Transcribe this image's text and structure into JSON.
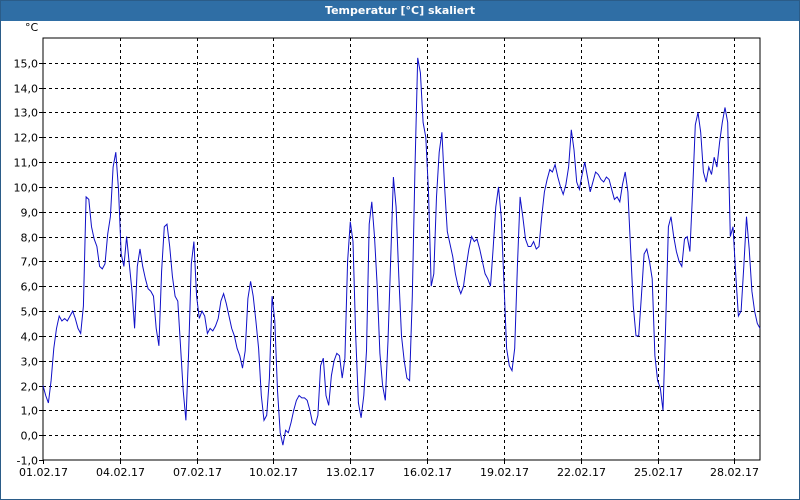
{
  "window": {
    "title": "Temperatur [°C] skaliert"
  },
  "chart_data": {
    "type": "line",
    "title": "Temperatur [°C] skaliert",
    "ylabel": "°C",
    "xlabel": "",
    "ylim": [
      -1.0,
      16.0
    ],
    "xlim": [
      "01.02.17",
      "28.02.17 ~24:00"
    ],
    "grid": true,
    "colors": {
      "line": "#1010c8",
      "grid": "#000000",
      "axis": "#000000"
    },
    "y_ticks": [
      "-1,0",
      "0,0",
      "1,0",
      "2,0",
      "3,0",
      "4,0",
      "5,0",
      "6,0",
      "7,0",
      "8,0",
      "9,0",
      "10,0",
      "11,0",
      "12,0",
      "13,0",
      "14,0",
      "15,0"
    ],
    "x_ticks": [
      "01.02.17",
      "04.02.17",
      "07.02.17",
      "10.02.17",
      "13.02.17",
      "16.02.17",
      "19.02.17",
      "22.02.17",
      "25.02.17",
      "28.02.17"
    ],
    "series": [
      {
        "values": [
          2.0,
          1.6,
          1.3,
          2.2,
          3.5,
          4.3,
          4.8,
          4.6,
          4.7,
          4.6,
          4.8,
          5.0,
          4.7,
          4.3,
          4.1,
          5.2,
          9.6,
          9.5,
          8.4,
          7.9,
          7.6,
          6.8,
          6.7,
          6.9,
          8.1,
          8.8,
          10.8,
          11.4,
          9.9,
          7.3,
          6.8,
          8.0,
          6.9,
          5.8,
          4.3,
          6.8,
          7.5,
          6.8,
          6.3,
          5.9,
          5.8,
          5.6,
          4.3,
          3.6,
          6.6,
          8.4,
          8.5,
          7.6,
          6.4,
          5.6,
          5.4,
          3.6,
          1.8,
          0.6,
          3.3,
          6.9,
          7.8,
          5.6,
          4.7,
          5.0,
          4.8,
          4.1,
          4.3,
          4.2,
          4.4,
          4.7,
          5.4,
          5.7,
          5.3,
          4.8,
          4.3,
          4.0,
          3.5,
          3.2,
          2.7,
          3.4,
          5.5,
          6.2,
          5.6,
          4.6,
          3.5,
          1.6,
          0.6,
          0.8,
          2.3,
          5.6,
          4.6,
          1.8,
          0.1,
          -0.4,
          0.2,
          0.1,
          0.5,
          1.0,
          1.4,
          1.6,
          1.5,
          1.5,
          1.4,
          1.0,
          0.5,
          0.4,
          0.8,
          2.8,
          3.1,
          1.6,
          1.2,
          2.4,
          3.0,
          3.3,
          3.2,
          2.3,
          3.1,
          7.0,
          8.6,
          7.8,
          4.0,
          1.3,
          0.7,
          1.6,
          3.4,
          8.5,
          9.4,
          8.0,
          6.0,
          3.3,
          2.0,
          1.4,
          3.8,
          7.1,
          10.4,
          9.2,
          6.4,
          4.0,
          3.0,
          2.3,
          2.2,
          5.6,
          10.8,
          15.2,
          14.6,
          12.6,
          12.0,
          9.8,
          6.0,
          6.5,
          9.6,
          11.4,
          12.2,
          10.0,
          8.2,
          7.7,
          7.2,
          6.5,
          6.0,
          5.7,
          6.0,
          6.8,
          7.5,
          8.0,
          7.8,
          7.9,
          7.5,
          7.0,
          6.5,
          6.3,
          6.0,
          7.5,
          9.2,
          10.0,
          8.8,
          6.2,
          3.5,
          2.8,
          2.6,
          3.5,
          6.8,
          9.6,
          8.8,
          7.9,
          7.6,
          7.6,
          7.8,
          7.5,
          7.6,
          8.8,
          9.8,
          10.3,
          10.7,
          10.6,
          10.9,
          10.4,
          10.0,
          9.7,
          10.1,
          10.8,
          12.3,
          11.5,
          10.2,
          9.9,
          10.5,
          11.0,
          10.4,
          9.8,
          10.2,
          10.6,
          10.5,
          10.3,
          10.2,
          10.4,
          10.3,
          9.9,
          9.5,
          9.6,
          9.4,
          10.1,
          10.6,
          9.8,
          7.5,
          5.2,
          4.0,
          4.0,
          5.6,
          7.3,
          7.5,
          7.0,
          6.3,
          3.2,
          2.2,
          1.9,
          1.0,
          4.5,
          8.4,
          8.8,
          8.0,
          7.4,
          7.0,
          6.8,
          7.9,
          8.0,
          7.4,
          9.8,
          12.5,
          13.0,
          12.2,
          10.6,
          10.2,
          10.8,
          10.5,
          11.2,
          10.8,
          11.8,
          12.6,
          13.2,
          12.6,
          8.0,
          8.4,
          6.5,
          4.8,
          5.0,
          6.8,
          8.8,
          7.5,
          5.8,
          5.0,
          4.5,
          4.3
        ]
      }
    ]
  }
}
